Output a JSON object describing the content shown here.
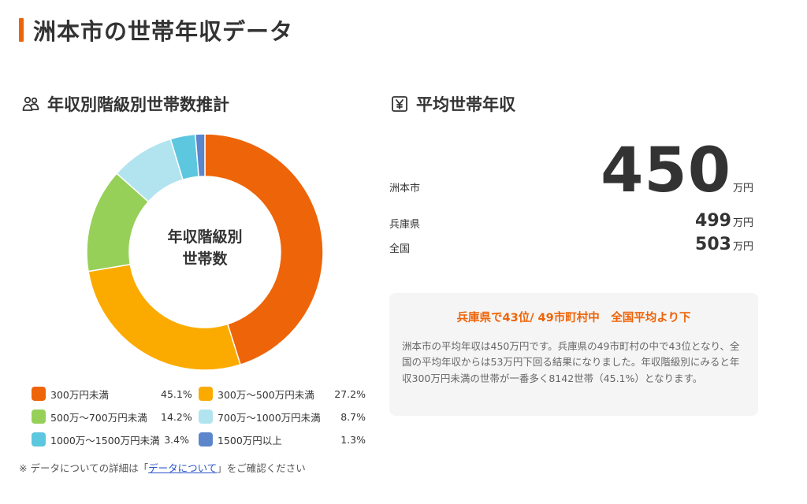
{
  "page": {
    "title": "洲本市の世帯年収データ"
  },
  "distribution": {
    "heading": "年収別階級別世帯数推計",
    "center_label_line1": "年収階級別",
    "center_label_line2": "世帯数"
  },
  "chart_data": {
    "type": "pie",
    "donut": true,
    "categories": [
      "300万円未満",
      "300万～500万円未満",
      "500万～700万円未満",
      "700万～1000万円未満",
      "1000万～1500万円未満",
      "1500万円以上"
    ],
    "values": [
      45.1,
      27.2,
      14.2,
      8.7,
      3.4,
      1.3
    ],
    "value_labels": [
      "45.1%",
      "27.2%",
      "14.2%",
      "8.7%",
      "3.4%",
      "1.3%"
    ],
    "colors": [
      "#ee6408",
      "#fbab00",
      "#97d059",
      "#b2e4f0",
      "#5cc7de",
      "#5b86cc"
    ],
    "legend_position": "bottom"
  },
  "average": {
    "heading": "平均世帯年収",
    "unit": "万円",
    "rows": [
      {
        "label": "洲本市",
        "value": "450"
      },
      {
        "label": "兵庫県",
        "value": "499"
      },
      {
        "label": "全国",
        "value": "503"
      }
    ]
  },
  "summary": {
    "title": "兵庫県で43位/ 49市町村中　全国平均より下",
    "text": "洲本市の平均年収は450万円です。兵庫県の49市町村の中で43位となり、全国の平均年収からは53万円下回る結果になりました。年収階級別にみると年収300万円未満の世帯が一番多く8142世帯（45.1%）となります。"
  },
  "footnote": {
    "prefix": "※ データについての詳細は「",
    "link_text": "データについて",
    "suffix": "」をご確認ください"
  },
  "icons": {
    "distribution": "people-icon",
    "average": "yen-icon"
  }
}
